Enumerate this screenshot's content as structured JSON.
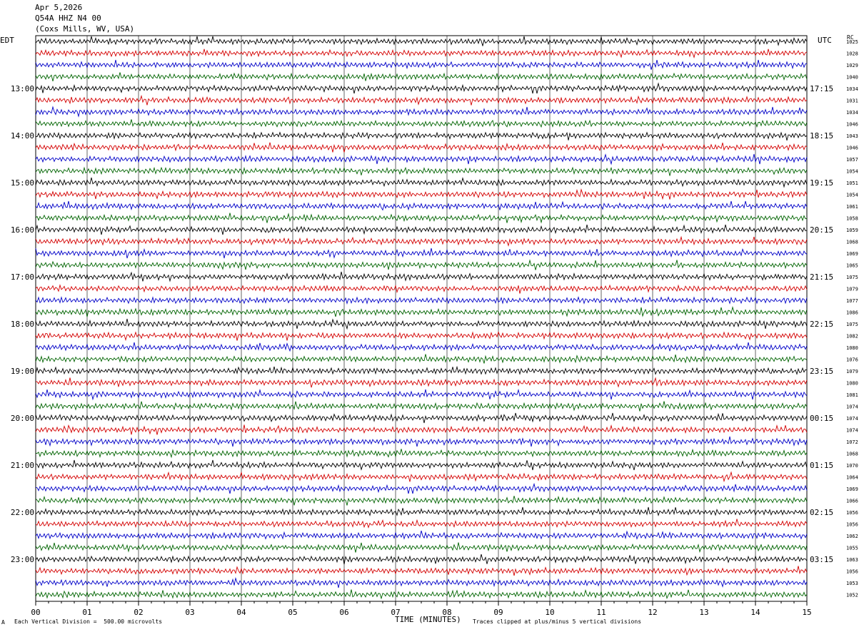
{
  "header": {
    "date": "Apr 5,2026",
    "channel": "Q54A HHZ N4 00",
    "location": "(Coxs Mills, WV, USA)"
  },
  "left_axis_title": "EDT",
  "right_axis_title": "UTC",
  "rms_axis_title": "RC",
  "footer": {
    "scale_note": "Each Vertical Division =  500.00 microvolts",
    "clip_note": "Traces clipped at plus/minus 5 vertical divisions",
    "corner_mark": "A"
  },
  "colors": {
    "trace_cycle": [
      "#000000",
      "#d40000",
      "#0000c8",
      "#006400"
    ],
    "grid": "#000000",
    "background": "#ffffff"
  },
  "chart_data": {
    "type": "line",
    "title": "",
    "xlabel": "TIME (MINUTES)",
    "x_ticks": [
      "00",
      "01",
      "02",
      "03",
      "04",
      "05",
      "06",
      "07",
      "08",
      "09",
      "10",
      "11",
      "12",
      "13",
      "14",
      "15"
    ],
    "xlim": [
      0,
      15
    ],
    "rows_per_hour": 4,
    "row_count": 48,
    "edt_labels": [
      {
        "row": 4,
        "label": "13:00"
      },
      {
        "row": 8,
        "label": "14:00"
      },
      {
        "row": 12,
        "label": "15:00"
      },
      {
        "row": 16,
        "label": "16:00"
      },
      {
        "row": 20,
        "label": "17:00"
      },
      {
        "row": 24,
        "label": "18:00"
      },
      {
        "row": 28,
        "label": "19:00"
      },
      {
        "row": 32,
        "label": "20:00"
      },
      {
        "row": 36,
        "label": "21:00"
      },
      {
        "row": 40,
        "label": "22:00"
      },
      {
        "row": 44,
        "label": "23:00"
      }
    ],
    "utc_labels": [
      {
        "row": 4,
        "label": "17:15"
      },
      {
        "row": 8,
        "label": "18:15"
      },
      {
        "row": 12,
        "label": "19:15"
      },
      {
        "row": 16,
        "label": "20:15"
      },
      {
        "row": 20,
        "label": "21:15"
      },
      {
        "row": 24,
        "label": "22:15"
      },
      {
        "row": 28,
        "label": "23:15"
      },
      {
        "row": 32,
        "label": "00:15"
      },
      {
        "row": 36,
        "label": "01:15"
      },
      {
        "row": 40,
        "label": "02:15"
      },
      {
        "row": 44,
        "label": "03:15"
      }
    ],
    "rms_values": [
      "1025",
      "1028",
      "1029",
      "1040",
      "1034",
      "1031",
      "1034",
      "1046",
      "1043",
      "1046",
      "1057",
      "1054",
      "1051",
      "1054",
      "1061",
      "1058",
      "1059",
      "1068",
      "1069",
      "1065",
      "1075",
      "1079",
      "1077",
      "1086",
      "1075",
      "1082",
      "1080",
      "1076",
      "1079",
      "1080",
      "1081",
      "1074",
      "1074",
      "1074",
      "1072",
      "1068",
      "1070",
      "1064",
      "1069",
      "1066",
      "1056",
      "1056",
      "1062",
      "1055",
      "1063",
      "1056",
      "1053",
      "1052"
    ]
  }
}
